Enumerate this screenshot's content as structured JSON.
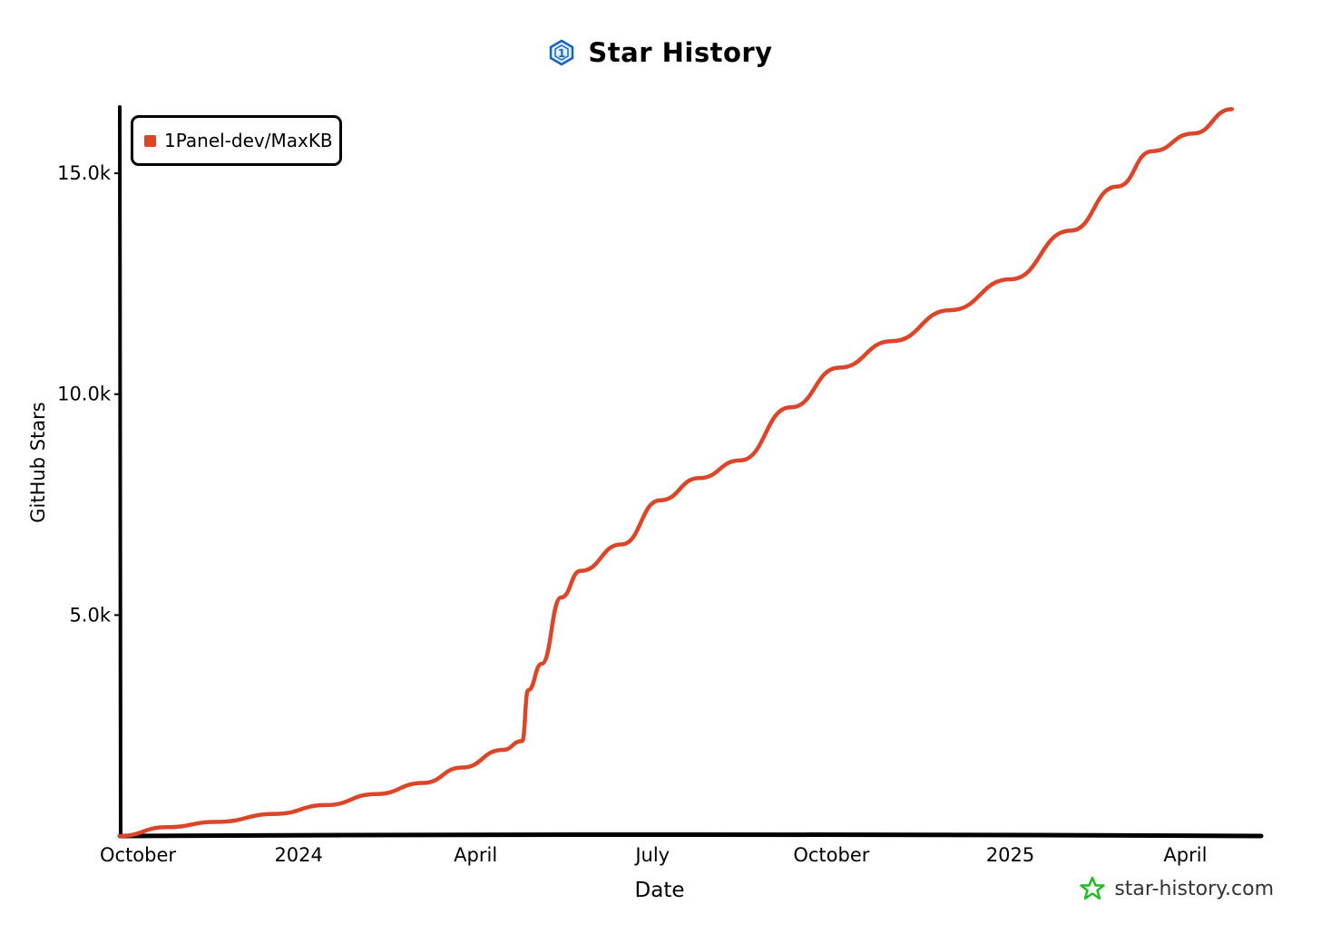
{
  "title": "Star History",
  "watermark": "star-history.com",
  "colors": {
    "series": "#dd4528",
    "axis": "#000000",
    "watermark_icon": "#22bb22",
    "logo": "#1565c0"
  },
  "icons": {
    "logo": "hexagon-1-icon",
    "watermark": "star-outline-icon"
  },
  "chart_data": {
    "type": "line",
    "title": "Star History",
    "xlabel": "Date",
    "ylabel": "GitHub Stars",
    "x_type": "date",
    "xlim": [
      "2023-10-01",
      "2025-05-10"
    ],
    "ylim": [
      0,
      16500
    ],
    "grid": false,
    "legend_position": "top-left",
    "x_ticks": [
      {
        "label": "October",
        "date": "2023-10-01"
      },
      {
        "label": "2024",
        "date": "2024-01-01"
      },
      {
        "label": "April",
        "date": "2024-04-01"
      },
      {
        "label": "July",
        "date": "2024-07-01"
      },
      {
        "label": "October",
        "date": "2024-10-01"
      },
      {
        "label": "2025",
        "date": "2025-01-01"
      },
      {
        "label": "April",
        "date": "2025-04-01"
      }
    ],
    "y_ticks": [
      {
        "label": "5.0k",
        "value": 5000
      },
      {
        "label": "10.0k",
        "value": 10000
      },
      {
        "label": "15.0k",
        "value": 15000
      }
    ],
    "series": [
      {
        "name": "1Panel-dev/MaxKB",
        "color": "#dd4528",
        "points": [
          [
            "2023-10-01",
            0
          ],
          [
            "2023-10-25",
            200
          ],
          [
            "2023-11-20",
            320
          ],
          [
            "2023-12-20",
            500
          ],
          [
            "2024-01-15",
            700
          ],
          [
            "2024-02-10",
            950
          ],
          [
            "2024-03-05",
            1200
          ],
          [
            "2024-03-25",
            1550
          ],
          [
            "2024-04-15",
            1950
          ],
          [
            "2024-04-25",
            2150
          ],
          [
            "2024-04-28",
            3300
          ],
          [
            "2024-05-05",
            3900
          ],
          [
            "2024-05-15",
            5400
          ],
          [
            "2024-05-25",
            6000
          ],
          [
            "2024-06-15",
            6600
          ],
          [
            "2024-07-05",
            7600
          ],
          [
            "2024-07-25",
            8100
          ],
          [
            "2024-08-15",
            8500
          ],
          [
            "2024-09-10",
            9700
          ],
          [
            "2024-10-05",
            10600
          ],
          [
            "2024-11-01",
            11200
          ],
          [
            "2024-12-01",
            11900
          ],
          [
            "2025-01-01",
            12600
          ],
          [
            "2025-02-01",
            13700
          ],
          [
            "2025-02-25",
            14700
          ],
          [
            "2025-03-15",
            15500
          ],
          [
            "2025-04-05",
            15900
          ],
          [
            "2025-04-25",
            16450
          ]
        ]
      }
    ]
  }
}
